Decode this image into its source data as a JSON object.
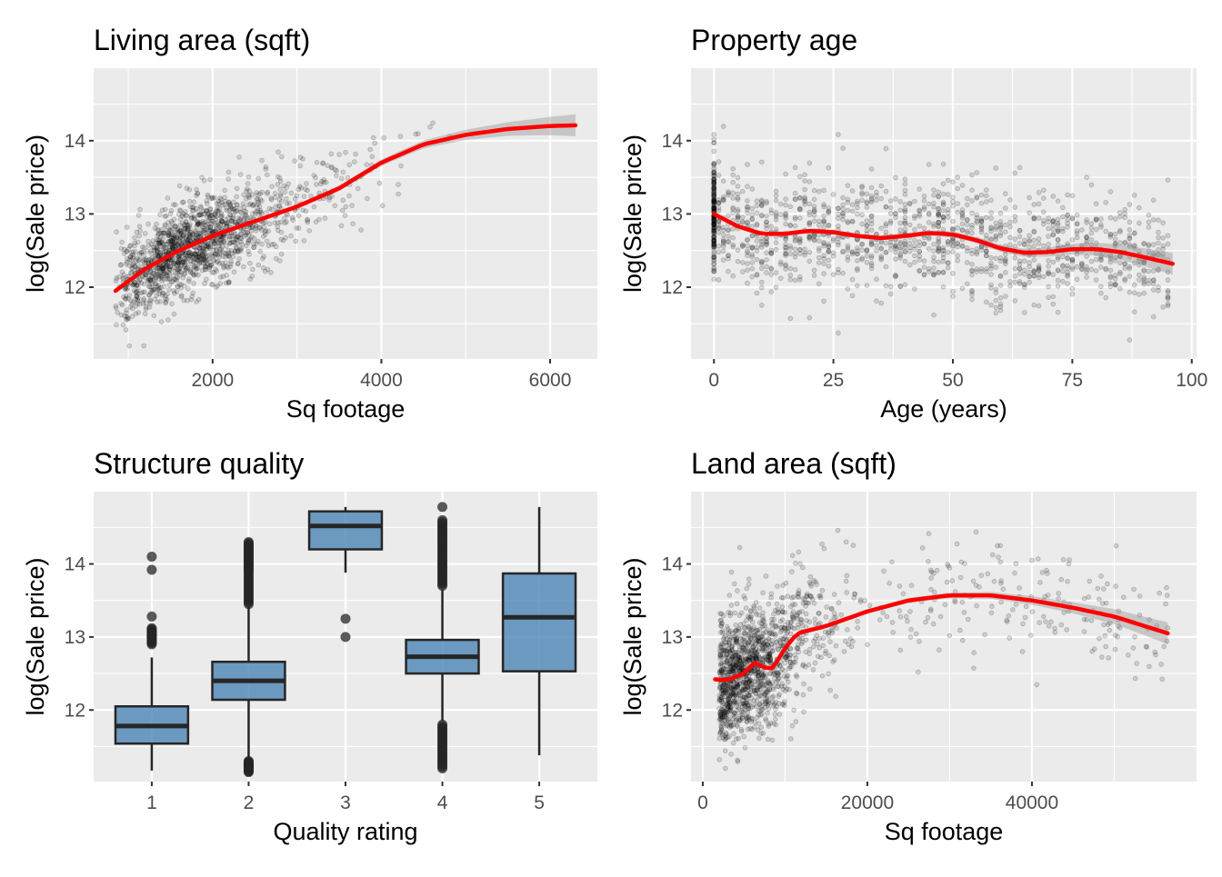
{
  "chart_data": [
    {
      "type": "scatter",
      "title": "Living area (sqft)",
      "xlabel": "Sq footage",
      "ylabel": "log(Sale price)",
      "xlim": [
        590,
        6560
      ],
      "ylim": [
        11.02,
        14.99
      ],
      "xticks": [
        2000,
        4000,
        6000
      ],
      "xtick_labels": [
        "2000",
        "4000",
        "6000"
      ],
      "yticks": [
        12,
        13,
        14
      ],
      "ytick_labels": [
        "12",
        "13",
        "14"
      ],
      "xminor": [
        1000,
        3000,
        5000
      ],
      "yminor": [
        11.5,
        12.5,
        13.5,
        14.5
      ],
      "grid": true,
      "smooth": {
        "x": [
          850,
          1200,
          1600,
          2000,
          2500,
          3000,
          3500,
          4000,
          4500,
          5000,
          5500,
          6000,
          6300
        ],
        "y": [
          11.95,
          12.25,
          12.5,
          12.7,
          12.9,
          13.1,
          13.35,
          13.7,
          13.95,
          14.08,
          14.16,
          14.2,
          14.21
        ]
      },
      "scatter_model": {
        "n": 1500,
        "x_center": 1800,
        "x_spread": 0.33,
        "x_min": 850,
        "x_max": 6300,
        "noise": 0.3
      }
    },
    {
      "type": "scatter",
      "title": "Property age",
      "xlabel": "Age (years)",
      "ylabel": "log(Sale price)",
      "xlim": [
        -4.8,
        101
      ],
      "ylim": [
        11.02,
        14.99
      ],
      "xticks": [
        0,
        25,
        50,
        75,
        100
      ],
      "xtick_labels": [
        "0",
        "25",
        "50",
        "75",
        "100"
      ],
      "yticks": [
        12,
        13,
        14
      ],
      "ytick_labels": [
        "12",
        "13",
        "14"
      ],
      "xminor": [
        12.5,
        37.5,
        62.5,
        87.5
      ],
      "yminor": [
        11.5,
        12.5,
        13.5,
        14.5
      ],
      "grid": true,
      "smooth": {
        "x": [
          0,
          5,
          10,
          15,
          20,
          25,
          30,
          35,
          40,
          45,
          50,
          55,
          60,
          65,
          70,
          75,
          80,
          85,
          90,
          96
        ],
        "y": [
          13.0,
          12.83,
          12.73,
          12.73,
          12.77,
          12.75,
          12.7,
          12.67,
          12.7,
          12.74,
          12.72,
          12.64,
          12.53,
          12.47,
          12.48,
          12.52,
          12.52,
          12.48,
          12.41,
          12.32
        ]
      },
      "scatter_model": {
        "n": 1500,
        "x_min": 0,
        "x_max": 96,
        "noise": 0.38
      }
    },
    {
      "type": "box",
      "title": "Structure quality",
      "xlabel": "Quality rating",
      "ylabel": "log(Sale price)",
      "categories": [
        "1",
        "2",
        "3",
        "4",
        "5"
      ],
      "ylim": [
        11.02,
        14.99
      ],
      "yticks": [
        12,
        13,
        14
      ],
      "ytick_labels": [
        "12",
        "13",
        "14"
      ],
      "yminor": [
        11.5,
        12.5,
        13.5,
        14.5
      ],
      "fill": "#4682b4",
      "boxes": [
        {
          "q1": 11.54,
          "median": 11.78,
          "q3": 12.05,
          "low": 11.17,
          "high": 12.72,
          "outliers": [
            14.1,
            13.92,
            13.28,
            13.12,
            13.04,
            13.0,
            12.9
          ]
        },
        {
          "q1": 12.14,
          "median": 12.4,
          "q3": 12.66,
          "low": 11.35,
          "high": 13.42,
          "outliers": [
            13.45,
            13.6,
            13.75,
            13.9,
            14.0,
            14.1,
            14.2,
            14.3,
            11.3,
            11.25,
            11.2,
            11.15
          ]
        },
        {
          "q1": 14.2,
          "median": 14.52,
          "q3": 14.72,
          "low": 13.88,
          "high": 14.78,
          "outliers": [
            13.25,
            13.0
          ]
        },
        {
          "q1": 12.5,
          "median": 12.73,
          "q3": 12.96,
          "low": 11.85,
          "high": 13.65,
          "outliers": [
            13.7,
            13.85,
            14.0,
            14.15,
            14.3,
            14.45,
            14.6,
            14.78,
            11.8,
            11.65,
            11.5,
            11.35,
            11.2
          ]
        },
        {
          "q1": 12.53,
          "median": 13.27,
          "q3": 13.87,
          "low": 11.38,
          "high": 14.78,
          "outliers": []
        }
      ]
    },
    {
      "type": "scatter",
      "title": "Land area (sqft)",
      "xlabel": "Sq footage",
      "ylabel": "log(Sale price)",
      "xlim": [
        -1430,
        60000
      ],
      "ylim": [
        11.02,
        14.99
      ],
      "xticks": [
        0,
        20000,
        40000
      ],
      "xtick_labels": [
        "0",
        "20000",
        "40000"
      ],
      "yticks": [
        12,
        13,
        14
      ],
      "ytick_labels": [
        "12",
        "13",
        "14"
      ],
      "xminor": [
        10000,
        30000,
        50000
      ],
      "yminor": [
        11.5,
        12.5,
        13.5,
        14.5
      ],
      "grid": true,
      "smooth": {
        "x": [
          1500,
          3000,
          5000,
          6200,
          7500,
          8500,
          10000,
          11500,
          15000,
          20000,
          25000,
          30000,
          35000,
          40000,
          45000,
          50000,
          56500
        ],
        "y": [
          12.42,
          12.41,
          12.5,
          12.65,
          12.58,
          12.57,
          12.85,
          13.05,
          13.15,
          13.35,
          13.5,
          13.57,
          13.57,
          13.5,
          13.4,
          13.28,
          13.05
        ]
      },
      "scatter_model": {
        "n": 1500,
        "x_min": 1500,
        "x_max": 56500,
        "noise": 0.45
      }
    }
  ],
  "colors": {
    "panel_bg": "#ebebeb",
    "grid": "#ffffff",
    "smooth": "#ff0000",
    "ribbon": "#999999",
    "point": "#000000"
  }
}
